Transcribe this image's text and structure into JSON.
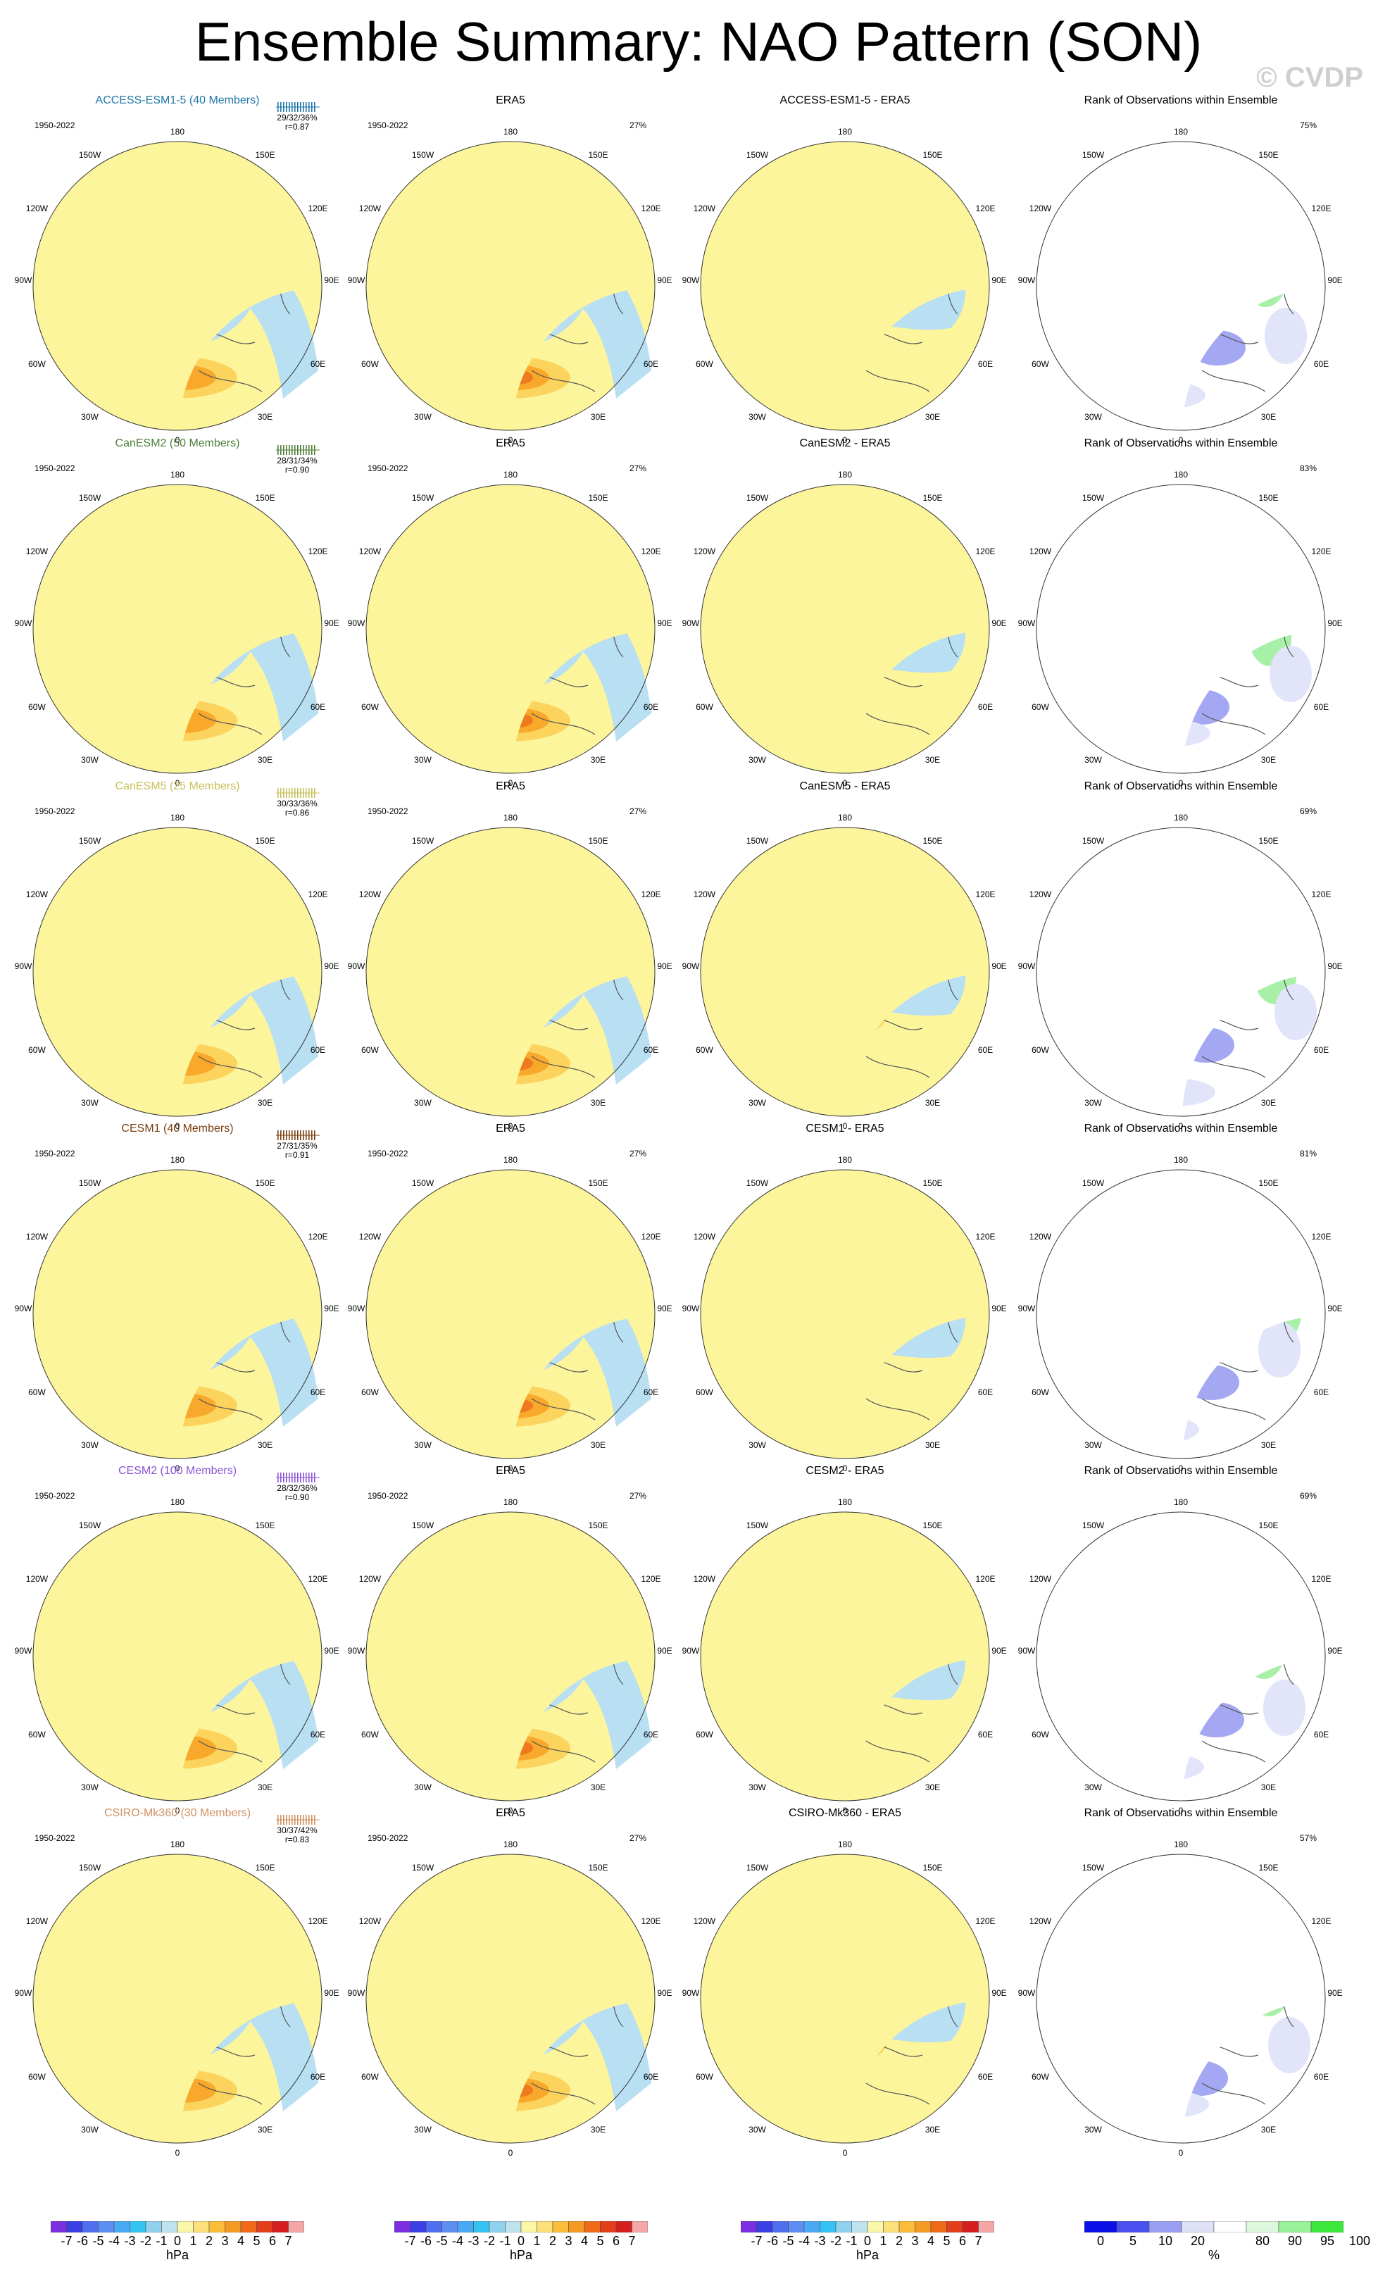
{
  "figure": {
    "title": "Ensemble Summary: NAO Pattern (SON)",
    "watermark": "© CVDP"
  },
  "rows": [
    {
      "model": "ACCESS-ESM1-5 (40 Members)",
      "model_short": "ACCESS-ESM1-5",
      "years": "1950-2022",
      "stats": "29/32/36%",
      "r": "r=0.87",
      "era_pct": "27%",
      "rank_pct": "75%",
      "color": "#1f77a8"
    },
    {
      "model": "CanESM2 (50 Members)",
      "model_short": "CanESM2",
      "years": "1950-2022",
      "stats": "28/31/34%",
      "r": "r=0.90",
      "era_pct": "27%",
      "rank_pct": "83%",
      "color": "#4d7f3a"
    },
    {
      "model": "CanESM5 (25 Members)",
      "model_short": "CanESM5",
      "years": "1950-2022",
      "stats": "30/33/36%",
      "r": "r=0.86",
      "era_pct": "27%",
      "rank_pct": "69%",
      "color": "#c9c05a"
    },
    {
      "model": "CESM1 (40 Members)",
      "model_short": "CESM1",
      "years": "1950-2022",
      "stats": "27/31/35%",
      "r": "r=0.91",
      "era_pct": "27%",
      "rank_pct": "81%",
      "color": "#7a3f10"
    },
    {
      "model": "CESM2 (100 Members)",
      "model_short": "CESM2",
      "years": "1950-2022",
      "stats": "28/32/36%",
      "r": "r=0.90",
      "era_pct": "27%",
      "rank_pct": "69%",
      "color": "#8a55d6"
    },
    {
      "model": "CSIRO-Mk360 (30 Members)",
      "model_short": "CSIRO-Mk360",
      "years": "1950-2022",
      "stats": "30/37/42%",
      "r": "r=0.83",
      "era_pct": "27%",
      "rank_pct": "57%",
      "color": "#d09060"
    }
  ],
  "panel_labels": {
    "era": "ERA5",
    "diff_suffix": " - ERA5",
    "rank": "Rank of Observations within Ensemble"
  },
  "longitudes": [
    "180",
    "150W",
    "150E",
    "120W",
    "120E",
    "90W",
    "90E",
    "60W",
    "60E",
    "30W",
    "30E",
    "0"
  ],
  "colorbar_hpa": {
    "labels": [
      "-7",
      "-6",
      "-5",
      "-4",
      "-3",
      "-2",
      "-1",
      "0",
      "1",
      "2",
      "3",
      "4",
      "5",
      "6",
      "7"
    ],
    "unit": "hPa",
    "colors": [
      "#7b2fe0",
      "#3b3fe6",
      "#4f6ff0",
      "#5d8ef3",
      "#4aaaf5",
      "#34c3f2",
      "#8fd1ee",
      "#bfe2ef",
      "#fbf7a8",
      "#fde07a",
      "#fbbd3a",
      "#f59a22",
      "#f06a18",
      "#e43e1a",
      "#d61e1e",
      "#f5a7a7"
    ]
  },
  "colorbar_rank": {
    "labels": [
      "0",
      "5",
      "10",
      "20",
      "80",
      "90",
      "95",
      "100"
    ],
    "unit": "%",
    "colors": [
      "#0a10e8",
      "#4a50ee",
      "#9a9ef2",
      "#dfe1f8",
      "#ffffff",
      "#ddf7dd",
      "#9af29a",
      "#3ce83c"
    ]
  },
  "map_colors": {
    "pos1": "#fcf59c",
    "pos2": "#fcd35c",
    "pos3": "#f8a82a",
    "pos4": "#ef7a1d",
    "neg1": "#b8dff2",
    "neg2": "#7fc4ee",
    "neg3": "#4aa9eb",
    "neg4": "#2a8de3",
    "rank_hi": "#36e636",
    "rank_mid": "#a8f0a8",
    "rank_lo": "#1212e6",
    "rank_midlo": "#a4a8f2",
    "rank_faint": "#e2e4fa",
    "coast": "#555555"
  }
}
